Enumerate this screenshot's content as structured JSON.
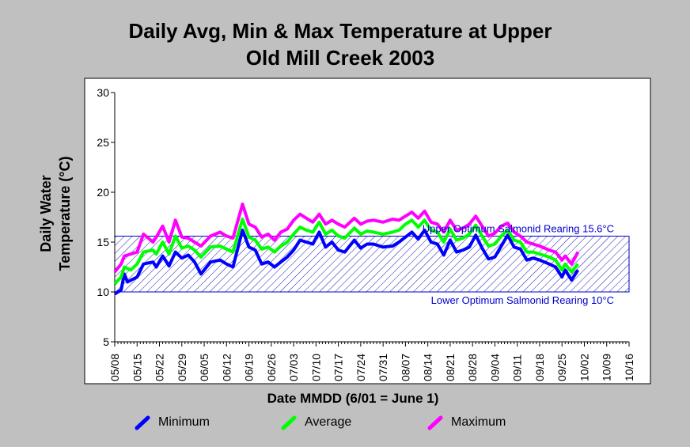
{
  "chart_data": {
    "type": "line",
    "title": "Daily Avg, Min & Max Temperature at Upper\nOld Mill Creek 2003",
    "xlabel": "Date MMDD (6/01 = June 1)",
    "ylabel": "Daily Water\nTemperature (°C)",
    "ylim": [
      5,
      30
    ],
    "yticks": [
      5,
      10,
      15,
      20,
      25,
      30
    ],
    "xtick_labels": [
      "05/08",
      "05/15",
      "05/22",
      "05/29",
      "06/05",
      "06/12",
      "06/19",
      "06/26",
      "07/03",
      "07/10",
      "07/17",
      "07/24",
      "07/31",
      "08/07",
      "08/14",
      "08/21",
      "08/28",
      "09/04",
      "09/11",
      "09/18",
      "09/25",
      "10/02",
      "10/09",
      "10/16"
    ],
    "x_start": "05/08",
    "x_end": "10/16",
    "band": {
      "lower": 10,
      "upper": 15.6,
      "upper_label": "Upper Optimum Salmonid Rearing 15.6°C",
      "lower_label": "Lower Optimum Salmonid Rearing 10°C"
    },
    "series": [
      {
        "name": "Minimum",
        "color": "#0000ff",
        "keypoints": [
          [
            0,
            9.8
          ],
          [
            2,
            10.2
          ],
          [
            3,
            11.8
          ],
          [
            4,
            11.0
          ],
          [
            7,
            11.5
          ],
          [
            9,
            12.8
          ],
          [
            12,
            13.0
          ],
          [
            13,
            12.5
          ],
          [
            15,
            13.6
          ],
          [
            17,
            12.6
          ],
          [
            19,
            14.0
          ],
          [
            21,
            13.4
          ],
          [
            23,
            13.7
          ],
          [
            25,
            13.0
          ],
          [
            27,
            11.8
          ],
          [
            30,
            13.0
          ],
          [
            33,
            13.2
          ],
          [
            35,
            12.8
          ],
          [
            37,
            12.5
          ],
          [
            40,
            16.2
          ],
          [
            42,
            14.5
          ],
          [
            44,
            14.2
          ],
          [
            46,
            12.8
          ],
          [
            48,
            13.0
          ],
          [
            50,
            12.5
          ],
          [
            52,
            13.0
          ],
          [
            54,
            13.5
          ],
          [
            56,
            14.2
          ],
          [
            58,
            15.2
          ],
          [
            60,
            15.0
          ],
          [
            62,
            14.8
          ],
          [
            64,
            16.0
          ],
          [
            66,
            14.5
          ],
          [
            68,
            15.0
          ],
          [
            70,
            14.2
          ],
          [
            72,
            14.0
          ],
          [
            75,
            15.2
          ],
          [
            77,
            14.4
          ],
          [
            79,
            14.8
          ],
          [
            81,
            14.8
          ],
          [
            84,
            14.5
          ],
          [
            87,
            14.6
          ],
          [
            89,
            15.0
          ],
          [
            91,
            15.5
          ],
          [
            93,
            16.0
          ],
          [
            95,
            15.3
          ],
          [
            97,
            16.2
          ],
          [
            99,
            15.0
          ],
          [
            101,
            14.8
          ],
          [
            103,
            13.7
          ],
          [
            105,
            15.2
          ],
          [
            107,
            14.0
          ],
          [
            109,
            14.2
          ],
          [
            111,
            14.5
          ],
          [
            113,
            15.7
          ],
          [
            115,
            14.4
          ],
          [
            117,
            13.3
          ],
          [
            119,
            13.5
          ],
          [
            121,
            14.6
          ],
          [
            123,
            15.7
          ],
          [
            125,
            14.5
          ],
          [
            127,
            14.3
          ],
          [
            129,
            13.2
          ],
          [
            131,
            13.4
          ],
          [
            133,
            13.2
          ],
          [
            136,
            12.8
          ],
          [
            138,
            12.5
          ],
          [
            140,
            11.5
          ],
          [
            141,
            12.2
          ],
          [
            143,
            11.2
          ],
          [
            145,
            12.2
          ]
        ]
      },
      {
        "name": "Average",
        "color": "#00ff00",
        "keypoints": [
          [
            0,
            10.8
          ],
          [
            2,
            11.5
          ],
          [
            3,
            12.5
          ],
          [
            5,
            12.2
          ],
          [
            7,
            12.8
          ],
          [
            9,
            14.0
          ],
          [
            12,
            14.2
          ],
          [
            13,
            13.8
          ],
          [
            15,
            15.0
          ],
          [
            17,
            13.8
          ],
          [
            19,
            15.6
          ],
          [
            21,
            14.4
          ],
          [
            23,
            14.6
          ],
          [
            25,
            14.2
          ],
          [
            27,
            13.5
          ],
          [
            30,
            14.5
          ],
          [
            33,
            14.6
          ],
          [
            35,
            14.3
          ],
          [
            37,
            14.0
          ],
          [
            40,
            17.3
          ],
          [
            42,
            15.5
          ],
          [
            44,
            15.2
          ],
          [
            46,
            14.3
          ],
          [
            48,
            14.5
          ],
          [
            50,
            14.0
          ],
          [
            52,
            14.6
          ],
          [
            54,
            15.0
          ],
          [
            56,
            15.8
          ],
          [
            58,
            16.5
          ],
          [
            60,
            16.2
          ],
          [
            62,
            16.0
          ],
          [
            64,
            17.0
          ],
          [
            66,
            15.8
          ],
          [
            68,
            16.2
          ],
          [
            70,
            15.6
          ],
          [
            72,
            15.4
          ],
          [
            75,
            16.4
          ],
          [
            77,
            15.8
          ],
          [
            79,
            16.1
          ],
          [
            81,
            16.0
          ],
          [
            84,
            15.8
          ],
          [
            87,
            16.0
          ],
          [
            89,
            16.2
          ],
          [
            91,
            16.8
          ],
          [
            93,
            17.2
          ],
          [
            95,
            16.5
          ],
          [
            97,
            17.2
          ],
          [
            99,
            16.2
          ],
          [
            101,
            16.0
          ],
          [
            103,
            15.0
          ],
          [
            105,
            16.3
          ],
          [
            107,
            15.2
          ],
          [
            109,
            15.4
          ],
          [
            111,
            15.8
          ],
          [
            113,
            16.7
          ],
          [
            115,
            15.6
          ],
          [
            117,
            14.6
          ],
          [
            119,
            14.8
          ],
          [
            121,
            15.6
          ],
          [
            123,
            16.2
          ],
          [
            125,
            15.2
          ],
          [
            127,
            15.0
          ],
          [
            129,
            14.0
          ],
          [
            131,
            14.0
          ],
          [
            133,
            13.8
          ],
          [
            136,
            13.5
          ],
          [
            138,
            13.2
          ],
          [
            140,
            12.2
          ],
          [
            141,
            12.8
          ],
          [
            143,
            12.0
          ],
          [
            145,
            12.8
          ]
        ]
      },
      {
        "name": "Maximum",
        "color": "#ff00ff",
        "keypoints": [
          [
            0,
            12.0
          ],
          [
            2,
            12.8
          ],
          [
            3,
            13.6
          ],
          [
            5,
            13.8
          ],
          [
            7,
            14.0
          ],
          [
            9,
            15.8
          ],
          [
            12,
            15.0
          ],
          [
            13,
            15.5
          ],
          [
            15,
            16.6
          ],
          [
            17,
            15.0
          ],
          [
            19,
            17.2
          ],
          [
            21,
            15.5
          ],
          [
            23,
            15.4
          ],
          [
            25,
            15.0
          ],
          [
            27,
            14.6
          ],
          [
            30,
            15.6
          ],
          [
            33,
            16.0
          ],
          [
            35,
            15.6
          ],
          [
            37,
            15.4
          ],
          [
            40,
            18.8
          ],
          [
            42,
            16.8
          ],
          [
            44,
            16.5
          ],
          [
            46,
            15.5
          ],
          [
            48,
            15.8
          ],
          [
            50,
            15.2
          ],
          [
            52,
            16.0
          ],
          [
            54,
            16.3
          ],
          [
            56,
            17.2
          ],
          [
            58,
            17.8
          ],
          [
            60,
            17.4
          ],
          [
            62,
            17.0
          ],
          [
            64,
            17.8
          ],
          [
            66,
            16.8
          ],
          [
            68,
            17.2
          ],
          [
            70,
            16.8
          ],
          [
            72,
            16.5
          ],
          [
            75,
            17.4
          ],
          [
            77,
            16.8
          ],
          [
            79,
            17.1
          ],
          [
            81,
            17.2
          ],
          [
            84,
            17.0
          ],
          [
            87,
            17.3
          ],
          [
            89,
            17.2
          ],
          [
            91,
            17.6
          ],
          [
            93,
            18.0
          ],
          [
            95,
            17.4
          ],
          [
            97,
            18.1
          ],
          [
            99,
            17.0
          ],
          [
            101,
            16.8
          ],
          [
            103,
            16.0
          ],
          [
            105,
            17.2
          ],
          [
            107,
            16.2
          ],
          [
            109,
            16.4
          ],
          [
            111,
            16.8
          ],
          [
            113,
            17.6
          ],
          [
            115,
            16.6
          ],
          [
            117,
            15.6
          ],
          [
            119,
            15.9
          ],
          [
            121,
            16.6
          ],
          [
            123,
            16.9
          ],
          [
            125,
            16.0
          ],
          [
            127,
            15.6
          ],
          [
            129,
            15.0
          ],
          [
            131,
            14.8
          ],
          [
            133,
            14.6
          ],
          [
            136,
            14.2
          ],
          [
            138,
            14.0
          ],
          [
            140,
            13.2
          ],
          [
            141,
            13.6
          ],
          [
            143,
            12.8
          ],
          [
            145,
            14.0
          ]
        ]
      }
    ],
    "legend": {
      "placement": "bottom"
    }
  }
}
